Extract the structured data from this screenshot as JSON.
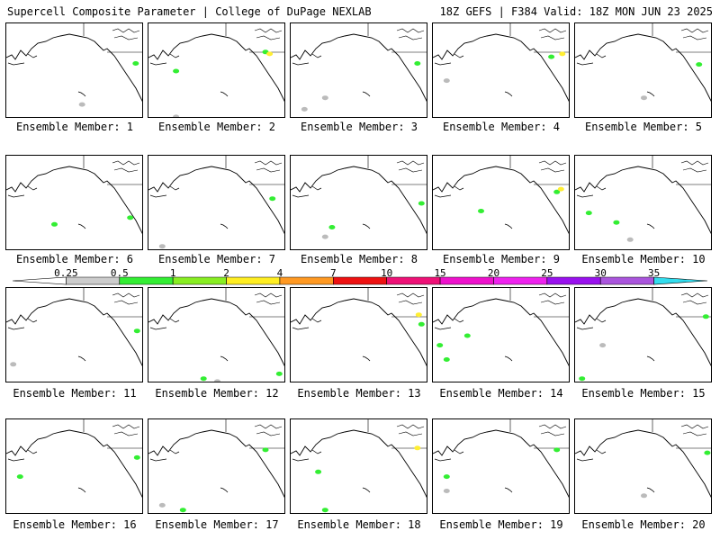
{
  "header": {
    "left": "Supercell Composite Parameter | College of DuPage NEXLAB",
    "right": "18Z GEFS | F384 Valid: 18Z MON JUN 23 2025"
  },
  "panels": [
    {
      "label": "Ensemble Member: 1",
      "blobs": [
        [
          "#33ee33",
          0.94,
          0.42
        ],
        [
          "#bbbbbb",
          0.55,
          0.85
        ]
      ]
    },
    {
      "label": "Ensemble Member: 2",
      "blobs": [
        [
          "#bbbbbb",
          0.2,
          0.98
        ],
        [
          "#33ee33",
          0.85,
          0.3
        ],
        [
          "#ffee33",
          0.88,
          0.32
        ],
        [
          "#33ee33",
          0.2,
          0.5
        ]
      ]
    },
    {
      "label": "Ensemble Member: 3",
      "blobs": [
        [
          "#bbbbbb",
          0.1,
          0.9
        ],
        [
          "#bbbbbb",
          0.25,
          0.78
        ],
        [
          "#33ee33",
          0.92,
          0.42
        ]
      ]
    },
    {
      "label": "Ensemble Member: 4",
      "blobs": [
        [
          "#ffee33",
          0.94,
          0.32
        ],
        [
          "#33ee33",
          0.86,
          0.35
        ],
        [
          "#bbbbbb",
          0.1,
          0.6
        ]
      ]
    },
    {
      "label": "Ensemble Member: 5",
      "blobs": [
        [
          "#33ee33",
          0.9,
          0.43
        ],
        [
          "#bbbbbb",
          0.5,
          0.78
        ]
      ]
    },
    {
      "label": "Ensemble Member: 6",
      "blobs": [
        [
          "#33ee33",
          0.35,
          0.72
        ],
        [
          "#33ee33",
          0.9,
          0.65
        ]
      ]
    },
    {
      "label": "Ensemble Member: 7",
      "blobs": [
        [
          "#33ee33",
          0.9,
          0.45
        ],
        [
          "#bbbbbb",
          0.1,
          0.95
        ]
      ]
    },
    {
      "label": "Ensemble Member: 8",
      "blobs": [
        [
          "#33ee33",
          0.3,
          0.75
        ],
        [
          "#bbbbbb",
          0.25,
          0.85
        ],
        [
          "#33ee33",
          0.95,
          0.5
        ]
      ]
    },
    {
      "label": "Ensemble Member: 9",
      "blobs": [
        [
          "#33ee33",
          0.9,
          0.38
        ],
        [
          "#ffee33",
          0.93,
          0.35
        ],
        [
          "#33ee33",
          0.35,
          0.58
        ]
      ]
    },
    {
      "label": "Ensemble Member: 10",
      "blobs": [
        [
          "#33ee33",
          0.1,
          0.6
        ],
        [
          "#33ee33",
          0.3,
          0.7
        ],
        [
          "#bbbbbb",
          0.4,
          0.88
        ]
      ]
    },
    {
      "label": "Ensemble Member: 11",
      "blobs": [
        [
          "#33ee33",
          0.95,
          0.45
        ],
        [
          "#bbbbbb",
          0.05,
          0.8
        ]
      ]
    },
    {
      "label": "Ensemble Member: 12",
      "blobs": [
        [
          "#33ee33",
          0.4,
          0.95
        ],
        [
          "#bbbbbb",
          0.5,
          0.98
        ],
        [
          "#33ee33",
          0.95,
          0.9
        ]
      ]
    },
    {
      "label": "Ensemble Member: 13",
      "blobs": [
        [
          "#ffee33",
          0.93,
          0.28
        ],
        [
          "#33ee33",
          0.95,
          0.38
        ]
      ]
    },
    {
      "label": "Ensemble Member: 14",
      "blobs": [
        [
          "#33ee33",
          0.05,
          0.6
        ],
        [
          "#33ee33",
          0.1,
          0.75
        ],
        [
          "#33ee33",
          0.25,
          0.5
        ]
      ]
    },
    {
      "label": "Ensemble Member: 15",
      "blobs": [
        [
          "#bbbbbb",
          0.2,
          0.6
        ],
        [
          "#33ee33",
          0.95,
          0.3
        ],
        [
          "#33ee33",
          0.05,
          0.95
        ]
      ]
    },
    {
      "label": "Ensemble Member: 16",
      "blobs": [
        [
          "#33ee33",
          0.1,
          0.6
        ],
        [
          "#33ee33",
          0.95,
          0.4
        ]
      ]
    },
    {
      "label": "Ensemble Member: 17",
      "blobs": [
        [
          "#33ee33",
          0.25,
          0.95
        ],
        [
          "#bbbbbb",
          0.1,
          0.9
        ],
        [
          "#33ee33",
          0.85,
          0.32
        ]
      ]
    },
    {
      "label": "Ensemble Member: 18",
      "blobs": [
        [
          "#33ee33",
          0.2,
          0.55
        ],
        [
          "#33ee33",
          0.25,
          0.95
        ],
        [
          "#ffee33",
          0.92,
          0.3
        ]
      ]
    },
    {
      "label": "Ensemble Member: 19",
      "blobs": [
        [
          "#33ee33",
          0.9,
          0.32
        ],
        [
          "#bbbbbb",
          0.1,
          0.75
        ],
        [
          "#33ee33",
          0.1,
          0.6
        ]
      ]
    },
    {
      "label": "Ensemble Member: 20",
      "blobs": [
        [
          "#33ee33",
          0.96,
          0.35
        ],
        [
          "#bbbbbb",
          0.5,
          0.8
        ]
      ]
    }
  ],
  "colorbar": {
    "levels": [
      "0.25",
      "0.5",
      "1",
      "2",
      "4",
      "7",
      "10",
      "15",
      "20",
      "25",
      "30",
      "35"
    ],
    "colors": [
      "#ffffff",
      "#cccccc",
      "#33ee33",
      "#88ee22",
      "#ffee22",
      "#ff9922",
      "#ee1111",
      "#ee1177",
      "#ee11cc",
      "#ee22ee",
      "#9911ee",
      "#aa55dd",
      "#33ddee"
    ]
  }
}
